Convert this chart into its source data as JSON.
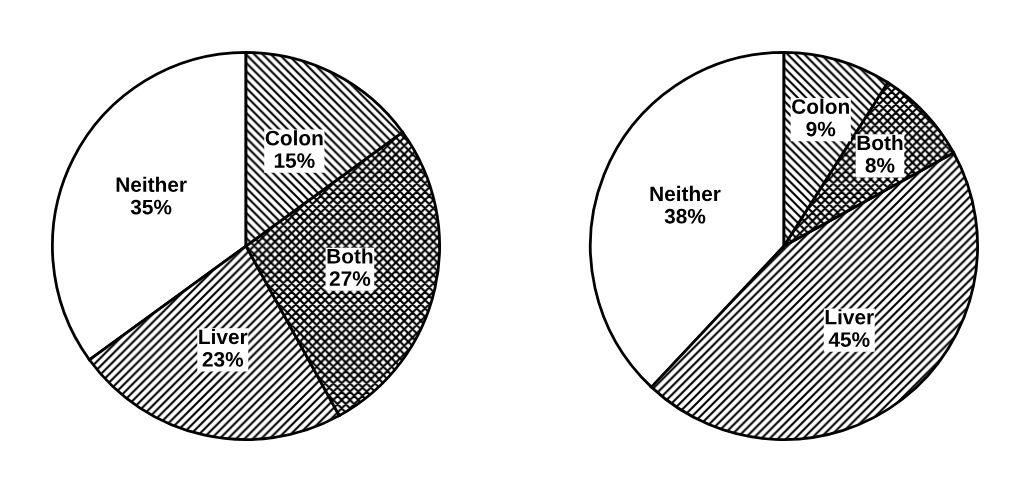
{
  "chart_data": [
    {
      "type": "pie",
      "categories": [
        "Neither",
        "Liver",
        "Both",
        "Colon"
      ],
      "values": [
        35,
        23,
        27,
        15
      ],
      "value_labels": [
        "35%",
        "23%",
        "27%",
        "15%"
      ],
      "colors": [
        "#ffffff",
        "#000000",
        "#000000",
        "#000000"
      ]
    },
    {
      "type": "pie",
      "categories": [
        "Neither",
        "Liver",
        "Both",
        "Colon"
      ],
      "values": [
        38,
        45,
        8,
        9
      ],
      "value_labels": [
        "38%",
        "45%",
        "8%",
        "9%"
      ],
      "colors": [
        "#ffffff",
        "#000000",
        "#000000",
        "#000000"
      ]
    }
  ]
}
